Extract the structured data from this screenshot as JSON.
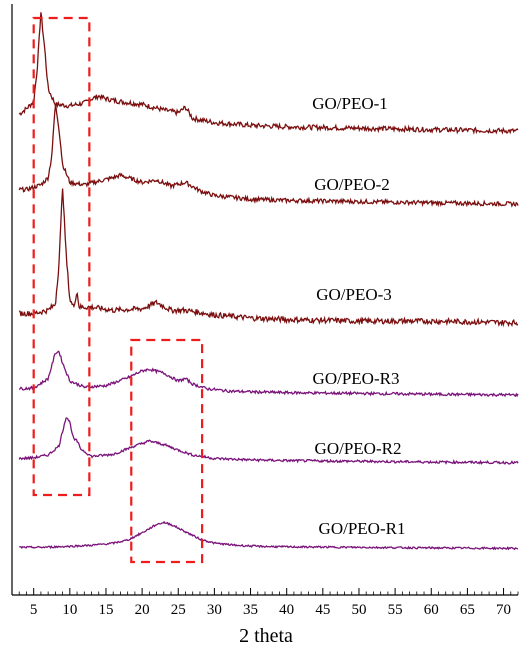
{
  "chart_data": {
    "type": "line",
    "title": "",
    "xlabel": "2 theta",
    "ylabel": "",
    "xlim": [
      2,
      72
    ],
    "x_ticks": [
      5,
      10,
      15,
      20,
      25,
      30,
      35,
      40,
      45,
      50,
      55,
      60,
      65,
      70
    ],
    "y_ticks_shown": false,
    "grid": false,
    "series": [
      {
        "name": "GO/PEO-1",
        "color": "#7b0f0f",
        "points": [
          [
            3,
            0.27
          ],
          [
            4,
            0.31
          ],
          [
            5,
            0.36
          ],
          [
            5.5,
            0.6
          ],
          [
            6,
            1.0
          ],
          [
            6.5,
            0.75
          ],
          [
            7,
            0.45
          ],
          [
            8,
            0.34
          ],
          [
            10,
            0.33
          ],
          [
            12,
            0.35
          ],
          [
            13,
            0.38
          ],
          [
            14,
            0.4
          ],
          [
            15,
            0.38
          ],
          [
            17,
            0.36
          ],
          [
            20,
            0.34
          ],
          [
            23,
            0.3
          ],
          [
            25,
            0.28
          ],
          [
            26,
            0.32
          ],
          [
            27,
            0.24
          ],
          [
            30,
            0.21
          ],
          [
            35,
            0.19
          ],
          [
            40,
            0.18
          ],
          [
            50,
            0.17
          ],
          [
            60,
            0.16
          ],
          [
            72,
            0.15
          ]
        ]
      },
      {
        "name": "GO/PEO-2",
        "color": "#7b0f0f",
        "points": [
          [
            3,
            0.27
          ],
          [
            4,
            0.27
          ],
          [
            5,
            0.29
          ],
          [
            6,
            0.31
          ],
          [
            7,
            0.37
          ],
          [
            7.5,
            0.55
          ],
          [
            8,
            0.99
          ],
          [
            8.5,
            0.78
          ],
          [
            9,
            0.48
          ],
          [
            10,
            0.33
          ],
          [
            12,
            0.31
          ],
          [
            14,
            0.34
          ],
          [
            16,
            0.37
          ],
          [
            17,
            0.39
          ],
          [
            18,
            0.37
          ],
          [
            20,
            0.33
          ],
          [
            22,
            0.35
          ],
          [
            24,
            0.3
          ],
          [
            26,
            0.33
          ],
          [
            28,
            0.26
          ],
          [
            30,
            0.22
          ],
          [
            35,
            0.19
          ],
          [
            40,
            0.18
          ],
          [
            50,
            0.17
          ],
          [
            60,
            0.16
          ],
          [
            72,
            0.15
          ]
        ]
      },
      {
        "name": "GO/PEO-3",
        "color": "#7b0f0f",
        "points": [
          [
            3,
            0.18
          ],
          [
            5,
            0.18
          ],
          [
            7,
            0.2
          ],
          [
            8,
            0.24
          ],
          [
            8.5,
            0.5
          ],
          [
            9,
            1.0
          ],
          [
            9.5,
            0.55
          ],
          [
            10,
            0.27
          ],
          [
            10.5,
            0.22
          ],
          [
            11,
            0.32
          ],
          [
            11.3,
            0.22
          ],
          [
            13,
            0.22
          ],
          [
            16,
            0.2
          ],
          [
            20,
            0.21
          ],
          [
            22,
            0.25
          ],
          [
            24,
            0.2
          ],
          [
            26,
            0.2
          ],
          [
            30,
            0.17
          ],
          [
            35,
            0.15
          ],
          [
            40,
            0.14
          ],
          [
            50,
            0.13
          ],
          [
            60,
            0.13
          ],
          [
            72,
            0.12
          ]
        ]
      },
      {
        "name": "GO/PEO-R3",
        "color": "#7a137a",
        "points": [
          [
            3,
            0.32
          ],
          [
            5,
            0.33
          ],
          [
            7,
            0.45
          ],
          [
            8,
            0.78
          ],
          [
            8.5,
            0.8
          ],
          [
            9,
            0.65
          ],
          [
            10,
            0.42
          ],
          [
            12,
            0.34
          ],
          [
            15,
            0.36
          ],
          [
            18,
            0.46
          ],
          [
            20,
            0.55
          ],
          [
            21,
            0.57
          ],
          [
            23,
            0.52
          ],
          [
            25,
            0.42
          ],
          [
            26,
            0.45
          ],
          [
            27,
            0.38
          ],
          [
            29,
            0.32
          ],
          [
            32,
            0.29
          ],
          [
            35,
            0.28
          ],
          [
            40,
            0.27
          ],
          [
            50,
            0.26
          ],
          [
            60,
            0.25
          ],
          [
            72,
            0.24
          ]
        ]
      },
      {
        "name": "GO/PEO-R2",
        "color": "#7a137a",
        "points": [
          [
            3,
            0.3
          ],
          [
            5,
            0.31
          ],
          [
            7,
            0.35
          ],
          [
            8.5,
            0.48
          ],
          [
            9.5,
            0.9
          ],
          [
            10,
            0.82
          ],
          [
            10.5,
            0.58
          ],
          [
            11,
            0.55
          ],
          [
            11.5,
            0.44
          ],
          [
            13,
            0.33
          ],
          [
            16,
            0.36
          ],
          [
            19,
            0.48
          ],
          [
            21,
            0.55
          ],
          [
            23,
            0.5
          ],
          [
            25,
            0.42
          ],
          [
            27,
            0.35
          ],
          [
            30,
            0.3
          ],
          [
            35,
            0.28
          ],
          [
            40,
            0.27
          ],
          [
            50,
            0.26
          ],
          [
            60,
            0.25
          ],
          [
            72,
            0.24
          ]
        ]
      },
      {
        "name": "GO/PEO-R1",
        "color": "#7a137a",
        "points": [
          [
            3,
            0.22
          ],
          [
            6,
            0.22
          ],
          [
            10,
            0.24
          ],
          [
            13,
            0.26
          ],
          [
            16,
            0.3
          ],
          [
            18,
            0.36
          ],
          [
            20,
            0.5
          ],
          [
            22,
            0.66
          ],
          [
            23,
            0.7
          ],
          [
            24,
            0.66
          ],
          [
            26,
            0.52
          ],
          [
            28,
            0.38
          ],
          [
            30,
            0.3
          ],
          [
            33,
            0.26
          ],
          [
            36,
            0.24
          ],
          [
            40,
            0.23
          ],
          [
            50,
            0.22
          ],
          [
            60,
            0.21
          ],
          [
            72,
            0.2
          ]
        ]
      }
    ],
    "annotations": [
      {
        "type": "dashed-rectangle",
        "color": "#ee1c1c",
        "x_range": [
          5.0,
          12.7
        ],
        "spans": "GO/PEO-1 to GO/PEO-R2"
      },
      {
        "type": "dashed-rectangle",
        "color": "#ee1c1c",
        "x_range": [
          18.5,
          28.3
        ],
        "spans": "GO/PEO-R3 to GO/PEO-R1"
      }
    ]
  }
}
